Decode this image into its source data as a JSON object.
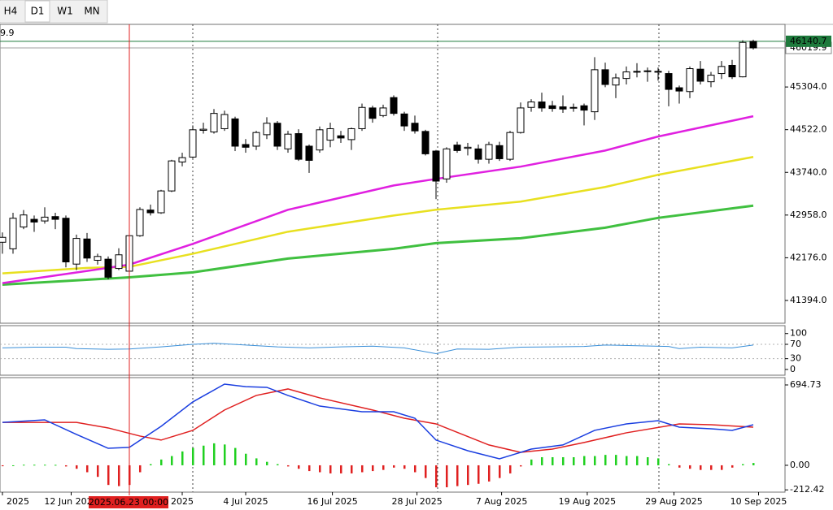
{
  "toolbar": {
    "tabs": [
      "H4",
      "D1",
      "W1",
      "MN"
    ]
  },
  "chart_data": [
    {
      "type": "candlestick",
      "left_label": "9.9",
      "xlim": [
        -0.23,
        74
      ],
      "ylim": [
        40977,
        46451
      ],
      "yticks": [
        {
          "value": 45304,
          "label": "45304.0"
        },
        {
          "value": 44522,
          "label": "44522.0"
        },
        {
          "value": 43740,
          "label": "43740.0"
        },
        {
          "value": 42958,
          "label": "42958.0"
        },
        {
          "value": 42176,
          "label": "42176.0"
        },
        {
          "value": 41394,
          "label": "41394.0"
        }
      ],
      "xticks": [
        {
          "value": 0,
          "label": "2025"
        },
        {
          "value": 6.5,
          "label": "12 Jun 2025"
        },
        {
          "value": 17,
          "label": "2025"
        },
        {
          "value": 23,
          "label": "4 Jul 2025"
        },
        {
          "value": 31.2,
          "label": "16 Jul 2025"
        },
        {
          "value": 39.2,
          "label": "28 Jul 2025"
        },
        {
          "value": 47.2,
          "label": "7 Aug 2025"
        },
        {
          "value": 55.3,
          "label": "19 Aug 2025"
        },
        {
          "value": 63.5,
          "label": "29 Aug 2025"
        },
        {
          "value": 71.5,
          "label": "10 Sep 2025"
        }
      ],
      "crosshair": {
        "x": 12,
        "label": "2025.06.23 00:00",
        "color": "#e02020"
      },
      "price_lines": [
        {
          "value": 46019.9,
          "color": "#a0a0a0"
        },
        {
          "value": 46140.7,
          "color": "#1e7a3c"
        }
      ],
      "candles": {
        "open": [
          42460,
          42340,
          42740,
          42880,
          42850,
          42930,
          42900,
          42060,
          42520,
          42130,
          42150,
          41980,
          41930,
          42580,
          43050,
          43000,
          43400,
          43930,
          44020,
          44510,
          44480,
          44540,
          44720,
          44250,
          44220,
          44430,
          44640,
          44170,
          44450,
          44220,
          44150,
          44330,
          44410,
          44340,
          44540,
          44920,
          44780,
          45110,
          44810,
          44640,
          44490,
          44130,
          43620,
          44240,
          44180,
          44170,
          43980,
          44230,
          43980,
          44470,
          44930,
          45030,
          44960,
          44940,
          44930,
          44960,
          44850,
          45620,
          45340,
          45460,
          45590,
          45590,
          45590,
          45550,
          45290,
          45220,
          45630,
          45400,
          45550,
          45700,
          45490,
          46140
        ],
        "high": [
          42640,
          43000,
          43050,
          42950,
          43100,
          43000,
          42950,
          42600,
          42630,
          42250,
          42200,
          42350,
          42620,
          43100,
          43150,
          43420,
          43970,
          44100,
          44600,
          44650,
          44900,
          44870,
          44760,
          44350,
          44500,
          44750,
          44680,
          44500,
          44530,
          44250,
          44580,
          44650,
          44500,
          44560,
          45000,
          44960,
          44980,
          45150,
          44850,
          44780,
          44520,
          44150,
          44200,
          44300,
          44280,
          44250,
          44300,
          44300,
          44500,
          45020,
          45080,
          45200,
          45050,
          45150,
          45000,
          45000,
          45850,
          45750,
          45550,
          45680,
          45740,
          45660,
          45660,
          45600,
          45330,
          45680,
          45780,
          45580,
          45780,
          45800,
          46160,
          46170
        ],
        "low": [
          42250,
          42250,
          42700,
          42650,
          42800,
          42700,
          42000,
          41950,
          42100,
          42050,
          41780,
          41950,
          41880,
          42560,
          42950,
          42980,
          43380,
          43850,
          44000,
          44450,
          44450,
          44500,
          44130,
          44100,
          44150,
          44350,
          44150,
          44100,
          43950,
          43730,
          44100,
          44200,
          44280,
          44150,
          44500,
          44650,
          44750,
          44780,
          44500,
          44450,
          44050,
          43250,
          43550,
          44100,
          44050,
          43900,
          43900,
          43950,
          43950,
          44450,
          44850,
          44850,
          44850,
          44830,
          44850,
          44600,
          44700,
          45300,
          45100,
          45350,
          45480,
          45400,
          45420,
          44950,
          45000,
          45100,
          45350,
          45300,
          45450,
          45450,
          45480,
          45990
        ],
        "close": [
          42550,
          42900,
          42960,
          42830,
          42920,
          42880,
          42100,
          42530,
          42170,
          42200,
          41820,
          42230,
          42580,
          43060,
          43000,
          43400,
          43950,
          44010,
          44520,
          44530,
          44820,
          44800,
          44220,
          44200,
          44470,
          44640,
          44220,
          44440,
          43980,
          43960,
          44520,
          44540,
          44370,
          44540,
          44930,
          44730,
          44920,
          44820,
          44590,
          44500,
          44080,
          43580,
          44170,
          44140,
          44200,
          43980,
          44250,
          43990,
          44470,
          44920,
          45030,
          44920,
          44910,
          44900,
          44920,
          44880,
          45620,
          45350,
          45470,
          45580,
          45580,
          45600,
          45580,
          45260,
          45230,
          45640,
          45410,
          45520,
          45680,
          45490,
          46120,
          46020
        ],
        "up_color": "#ffffff",
        "down_color": "#000000"
      },
      "ma_lines": [
        {
          "color": "#40c040",
          "x": [
            0,
            12,
            18,
            27,
            37,
            41,
            49,
            57,
            62,
            71
          ],
          "values": [
            41683,
            41818,
            41908,
            42161,
            42340,
            42444,
            42534,
            42727,
            42906,
            43130
          ]
        },
        {
          "color": "#e8e020",
          "x": [
            0,
            8,
            12,
            18,
            27,
            37,
            41,
            49,
            57,
            62,
            71
          ],
          "values": [
            41890,
            41990,
            42010,
            42250,
            42653,
            42950,
            43055,
            43204,
            43472,
            43695,
            44023
          ]
        },
        {
          "color": "#e020e0",
          "x": [
            0,
            8,
            12,
            18,
            27,
            37,
            41,
            49,
            57,
            62,
            71
          ],
          "values": [
            41711,
            41934,
            42050,
            42430,
            43055,
            43500,
            43620,
            43845,
            44140,
            44396,
            44768
          ]
        }
      ]
    },
    {
      "type": "line",
      "xlim": [
        -0.23,
        74
      ],
      "ylim": [
        -16,
        122
      ],
      "yticks": [
        100,
        70,
        30,
        0
      ],
      "levels": [
        70,
        30
      ],
      "series": [
        {
          "color": "#3a8fd8",
          "x": [
            0,
            3,
            6,
            7,
            10,
            12,
            15,
            18,
            20,
            23,
            26,
            29,
            32,
            35,
            38,
            41,
            43,
            46,
            49,
            52,
            55,
            57,
            60,
            63,
            64,
            66,
            69,
            71
          ],
          "values": [
            60,
            62,
            62,
            58,
            56,
            57,
            63,
            70,
            73,
            68,
            63,
            60,
            63,
            65,
            60,
            44,
            57,
            56,
            62,
            63,
            64,
            68,
            66,
            64,
            58,
            62,
            60,
            68
          ]
        }
      ]
    },
    {
      "type": "macd",
      "xlim": [
        -0.23,
        74
      ],
      "ylim": [
        -232,
        758
      ],
      "yticks": [
        694.73,
        {
          "value": 0,
          "label": "0.00"
        },
        -212.42
      ],
      "histogram": {
        "positive_color": "#20d020",
        "negative_color": "#e02020",
        "values": [
          -8,
          0,
          5,
          5,
          5,
          4,
          -10,
          -30,
          -60,
          -100,
          -170,
          -180,
          -170,
          -60,
          10,
          50,
          80,
          120,
          150,
          170,
          190,
          180,
          150,
          100,
          60,
          30,
          10,
          -10,
          -30,
          -50,
          -60,
          -70,
          -70,
          -70,
          -60,
          -50,
          -40,
          -20,
          -30,
          -60,
          -110,
          -190,
          -190,
          -180,
          -170,
          -160,
          -140,
          -110,
          -70,
          -10,
          50,
          70,
          70,
          70,
          70,
          80,
          80,
          90,
          90,
          80,
          80,
          70,
          60,
          10,
          -20,
          -30,
          -40,
          -40,
          -40,
          -20,
          10,
          20
        ]
      },
      "series": [
        {
          "color": "#e02020",
          "x": [
            0,
            7,
            10,
            13,
            15,
            18,
            21,
            24,
            27,
            30,
            35,
            38,
            41,
            46,
            49,
            52,
            55,
            59,
            64,
            67,
            71
          ],
          "values": [
            371,
            371,
            323,
            253,
            218,
            302,
            478,
            604,
            660,
            583,
            478,
            407,
            358,
            176,
            112,
            140,
            197,
            281,
            358,
            351,
            330
          ]
        },
        {
          "color": "#1a3ee0",
          "x": [
            0,
            4,
            7,
            10,
            12,
            15,
            18,
            21,
            23,
            25,
            27,
            30,
            34,
            37,
            39,
            41,
            44,
            47,
            50,
            53,
            56,
            59,
            62,
            64,
            67,
            69,
            71
          ],
          "values": [
            371,
            393,
            267,
            147,
            155,
            337,
            548,
            702,
            680,
            674,
            604,
            512,
            463,
            463,
            407,
            218,
            126,
            56,
            140,
            176,
            302,
            358,
            386,
            330,
            316,
            302,
            351
          ]
        }
      ]
    }
  ]
}
